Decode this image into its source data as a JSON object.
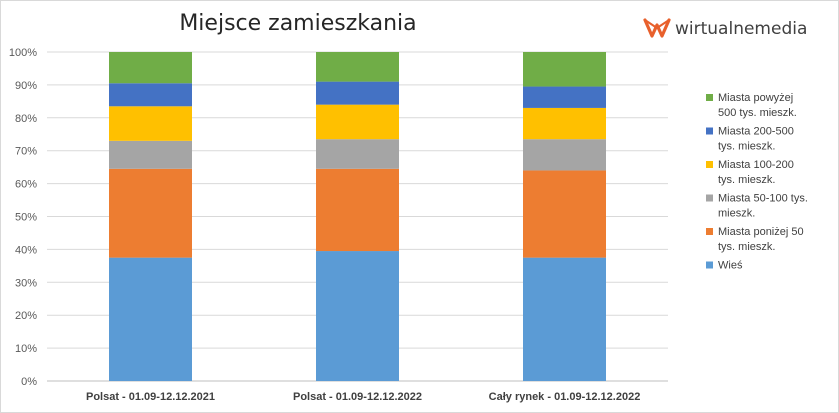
{
  "brand": {
    "name": "wirtualnemedia",
    "color": "#e8602c"
  },
  "chart_data": {
    "type": "bar",
    "stacked": true,
    "percent": true,
    "title": "Miejsce zamieszkania",
    "categories": [
      "Polsat - 01.09-12.12.2021",
      "Polsat - 01.09-12.12.2022",
      "Cały rynek - 01.09-12.12.2022"
    ],
    "ylim": [
      0,
      100
    ],
    "yticks": [
      "0%",
      "10%",
      "20%",
      "30%",
      "40%",
      "50%",
      "60%",
      "70%",
      "80%",
      "90%",
      "100%"
    ],
    "grid": true,
    "legend_position": "right",
    "series": [
      {
        "name": "Wieś",
        "legend_lines": [
          "Wieś"
        ],
        "color": "#5b9bd5",
        "values": [
          37.5,
          39.5,
          37.5
        ]
      },
      {
        "name": "Miasta poniżej 50 tys. mieszk.",
        "legend_lines": [
          "Miasta poniżej 50",
          "tys. mieszk."
        ],
        "color": "#ed7d31",
        "values": [
          27.0,
          25.0,
          26.5
        ]
      },
      {
        "name": "Miasta 50-100 tys. mieszk.",
        "legend_lines": [
          "Miasta 50-100 tys.",
          "mieszk."
        ],
        "color": "#a5a5a5",
        "values": [
          8.5,
          9.0,
          9.5
        ]
      },
      {
        "name": "Miasta 100-200 tys. mieszk.",
        "legend_lines": [
          "Miasta 100-200",
          "tys. mieszk."
        ],
        "color": "#ffc000",
        "values": [
          10.5,
          10.5,
          9.5
        ]
      },
      {
        "name": "Miasta 200-500 tys. mieszk.",
        "legend_lines": [
          "Miasta 200-500",
          "tys. mieszk."
        ],
        "color": "#4472c4",
        "values": [
          7.0,
          7.0,
          6.5
        ]
      },
      {
        "name": "Miasta powyżej 500 tys. mieszk.",
        "legend_lines": [
          "Miasta powyżej",
          "500 tys. mieszk."
        ],
        "color": "#70ad47",
        "values": [
          9.5,
          9.0,
          10.5
        ]
      }
    ]
  }
}
